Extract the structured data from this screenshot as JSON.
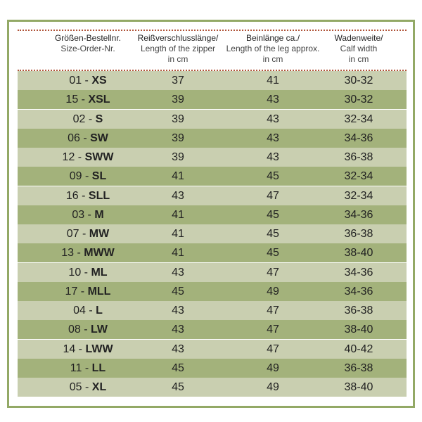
{
  "header": {
    "columns": [
      [
        "Größen-Bestellnr.",
        "Size-Order-Nr."
      ],
      [
        "Reißverschlusslänge/",
        "Length of the zipper",
        "in cm"
      ],
      [
        "Beinlänge ca./",
        "Length of the leg approx.",
        "in cm"
      ],
      [
        "Wadenweite/",
        "Calf width",
        "in cm"
      ]
    ]
  },
  "table": {
    "rows": [
      [
        {
          "prefix": "01 -",
          "code": "XS"
        },
        37,
        41,
        "30-32"
      ],
      [
        {
          "prefix": "15 -",
          "code": "XSL"
        },
        39,
        43,
        "30-32"
      ],
      [
        {
          "prefix": "02 -",
          "code": "S"
        },
        39,
        43,
        "32-34"
      ],
      [
        {
          "prefix": "06 -",
          "code": "SW"
        },
        39,
        43,
        "34-36"
      ],
      [
        {
          "prefix": "12 -",
          "code": "SWW"
        },
        39,
        43,
        "36-38"
      ],
      [
        {
          "prefix": "09 -",
          "code": "SL"
        },
        41,
        45,
        "32-34"
      ],
      [
        {
          "prefix": "16 -",
          "code": "SLL"
        },
        43,
        47,
        "32-34"
      ],
      [
        {
          "prefix": "03 -",
          "code": "M"
        },
        41,
        45,
        "34-36"
      ],
      [
        {
          "prefix": "07 -",
          "code": "MW"
        },
        41,
        45,
        "36-38"
      ],
      [
        {
          "prefix": "13 -",
          "code": "MWW"
        },
        41,
        45,
        "38-40"
      ],
      [
        {
          "prefix": "10 -",
          "code": "ML"
        },
        43,
        47,
        "34-36"
      ],
      [
        {
          "prefix": "17 -",
          "code": "MLL"
        },
        45,
        49,
        "34-36"
      ],
      [
        {
          "prefix": "04 -",
          "code": "L"
        },
        43,
        47,
        "36-38"
      ],
      [
        {
          "prefix": "08 -",
          "code": "LW"
        },
        43,
        47,
        "38-40"
      ],
      [
        {
          "prefix": "14 -",
          "code": "LWW"
        },
        43,
        47,
        "40-42"
      ],
      [
        {
          "prefix": "11 -",
          "code": "LL"
        },
        45,
        49,
        "36-38"
      ],
      [
        {
          "prefix": "05 -",
          "code": "XL"
        },
        45,
        49,
        "38-40"
      ]
    ]
  }
}
